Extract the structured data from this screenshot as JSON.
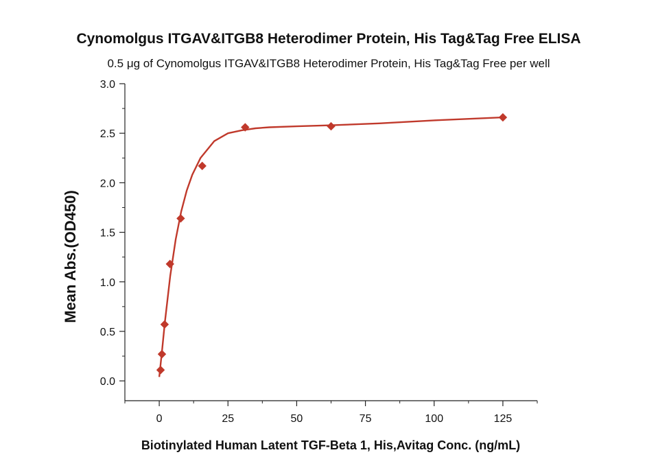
{
  "chart_data": {
    "type": "scatter",
    "title": "Cynomolgus ITGAV&ITGB8 Heterodimer Protein, His Tag&Tag Free ELISA",
    "subtitle": "0.5 μg of Cynomolgus ITGAV&ITGB8 Heterodimer Protein, His Tag&Tag Free per well",
    "xlabel": "Biotinylated Human Latent TGF-Beta 1, His,Avitag Conc. (ng/mL)",
    "ylabel": "Mean Abs.(OD450)",
    "xlim": [
      -12.5,
      137.5
    ],
    "ylim": [
      -0.2,
      3.0
    ],
    "x_ticks": [
      "0",
      "25",
      "50",
      "75",
      "100",
      "125"
    ],
    "x_tick_values": [
      0,
      25,
      50,
      75,
      100,
      125
    ],
    "y_ticks": [
      "0.0",
      "0.5",
      "1.0",
      "1.5",
      "2.0",
      "2.5",
      "3.0"
    ],
    "y_tick_values": [
      0.0,
      0.5,
      1.0,
      1.5,
      2.0,
      2.5,
      3.0
    ],
    "series": [
      {
        "name": "Mean Abs.(OD450)",
        "x": [
          0.49,
          0.98,
          1.95,
          3.91,
          7.81,
          15.63,
          31.25,
          62.5,
          125
        ],
        "y": [
          0.11,
          0.27,
          0.57,
          1.18,
          1.64,
          2.17,
          2.56,
          2.57,
          2.66
        ],
        "color": "#c0392b"
      }
    ],
    "fit_curve": {
      "x": [
        0,
        1,
        2,
        4,
        6,
        8,
        10,
        12,
        15,
        20,
        25,
        30,
        35,
        40,
        50,
        62.5,
        80,
        100,
        125
      ],
      "y": [
        0.04,
        0.3,
        0.58,
        1.06,
        1.43,
        1.71,
        1.92,
        2.08,
        2.25,
        2.42,
        2.5,
        2.53,
        2.55,
        2.56,
        2.57,
        2.58,
        2.6,
        2.63,
        2.66
      ]
    }
  }
}
